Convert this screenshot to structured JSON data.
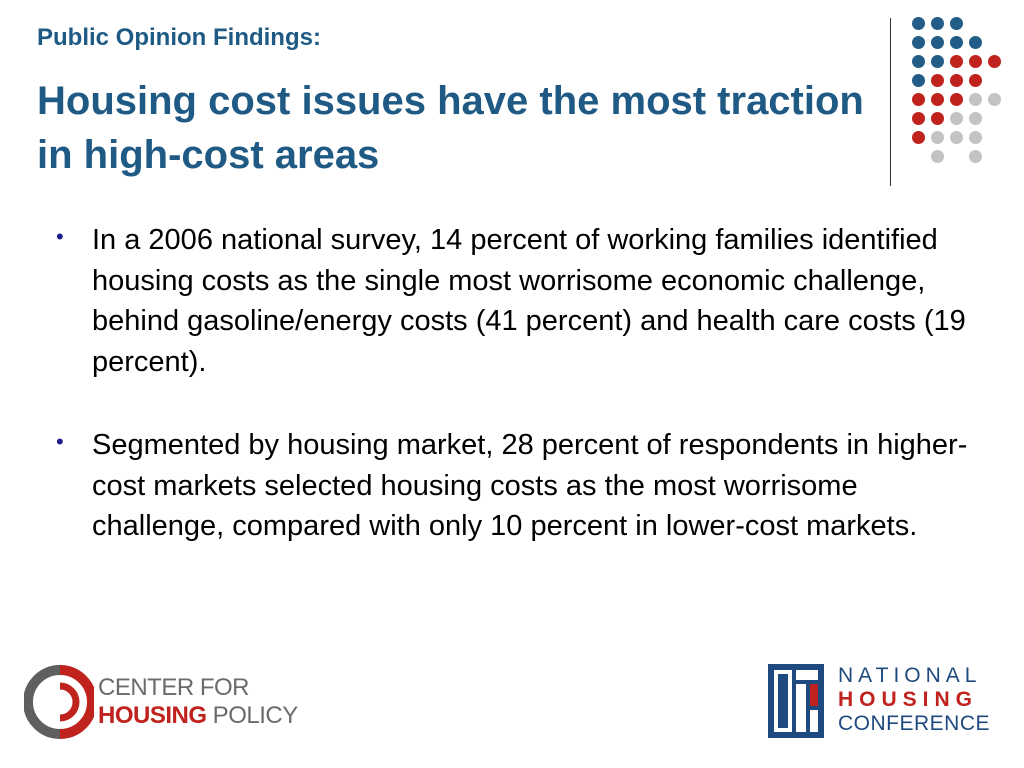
{
  "slide": {
    "subtitle": "Public Opinion Findings:",
    "title": "Housing cost issues have the most traction in high-cost areas",
    "bullets": [
      "In a 2006 national survey, 14 percent of working families identified housing costs as the single most worrisome economic challenge, behind gasoline/energy costs (41 percent) and health care costs (19 percent).",
      "Segmented by housing market, 28 percent of respondents in higher-cost markets selected housing costs as the most worrisome challenge, compared with only 10 percent in lower-cost markets."
    ]
  },
  "logos": {
    "left": {
      "line1": "CENTER FOR",
      "line2_strong": "HOUSING",
      "line2_rest": " POLICY"
    },
    "right": {
      "line1": "NATIONAL",
      "line2": "HOUSING",
      "line3": "CONFERENCE"
    }
  },
  "colors": {
    "title_blue": "#1f5a85",
    "accent_red": "#c0221e",
    "dot_gray": "#c3c3c3"
  },
  "icons": [
    "dot-grid-ornament",
    "cfhp-logo-mark",
    "nhc-logo-mark"
  ]
}
